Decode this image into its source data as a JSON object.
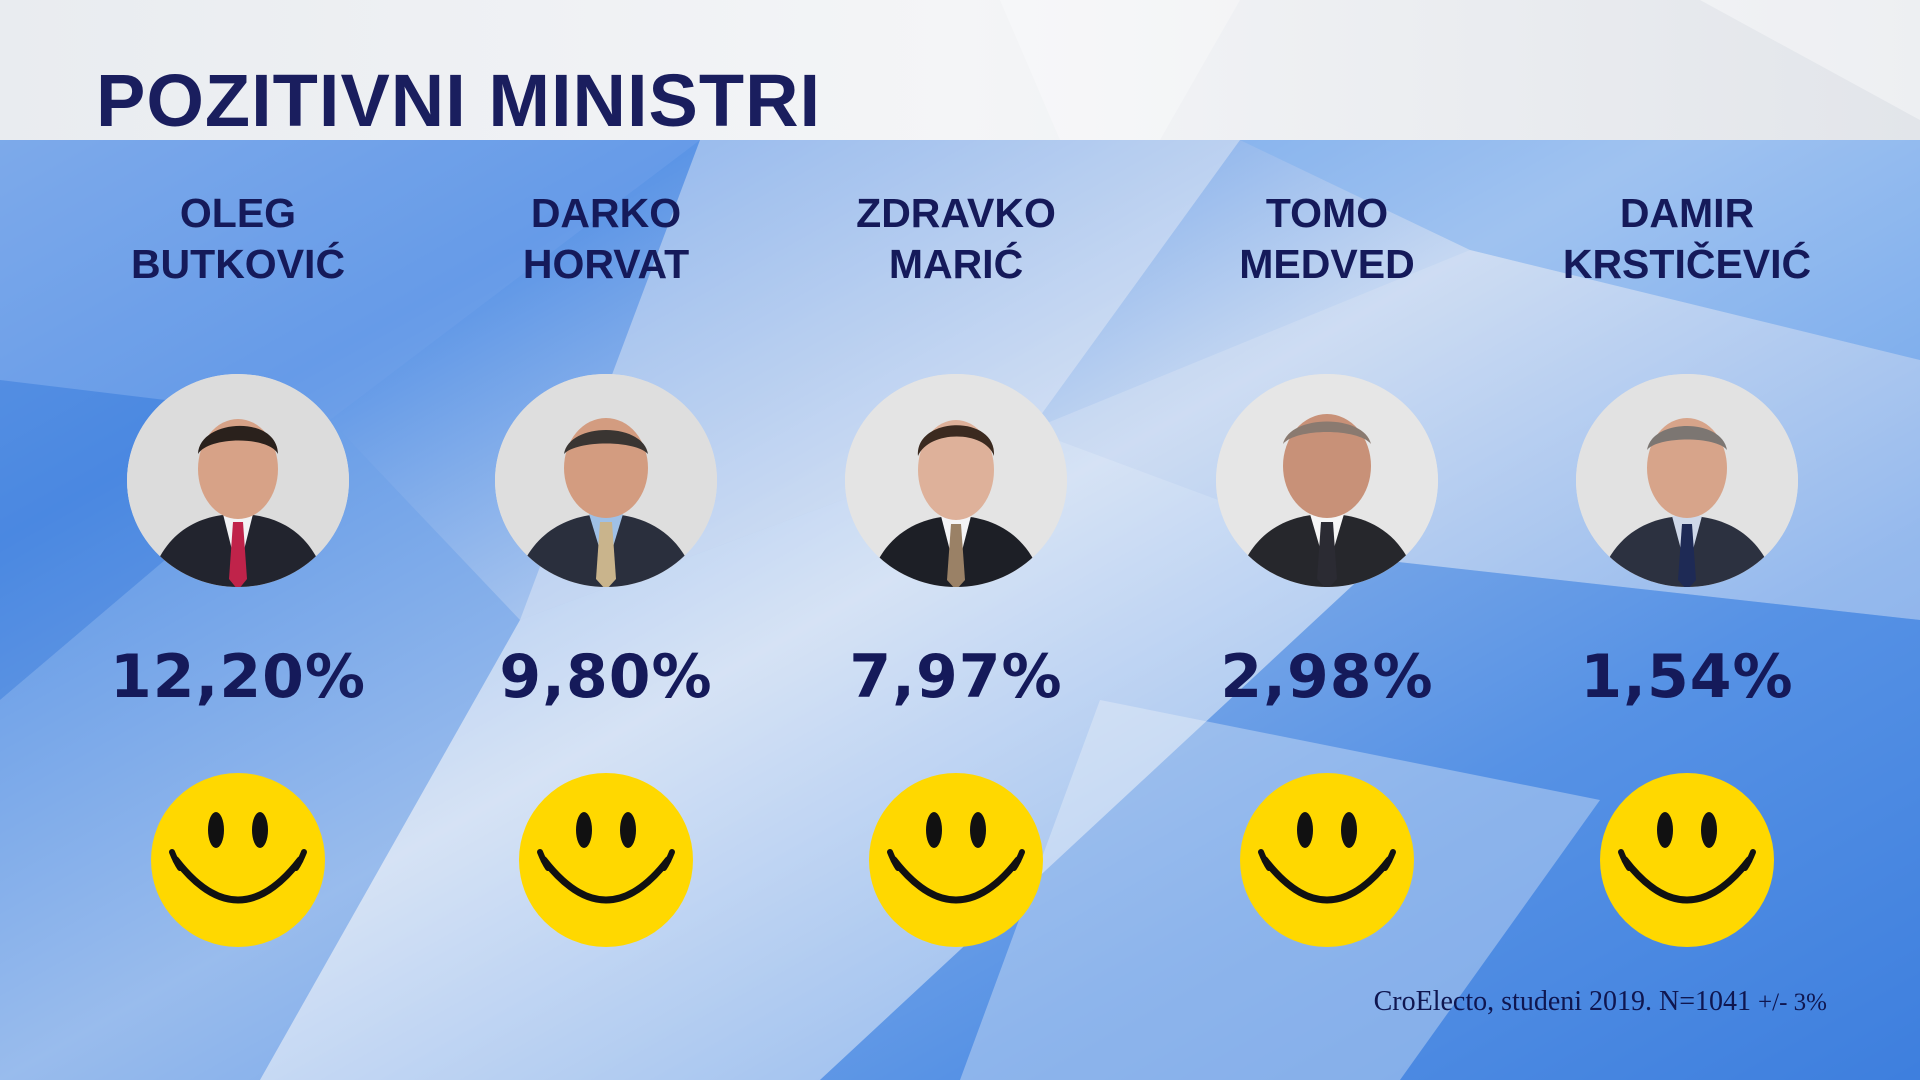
{
  "title": "POZITIVNI MINISTRI",
  "ministers": [
    {
      "first": "OLEG",
      "last": "BUTKOVIĆ",
      "percent": "12,20%",
      "tie_color": "#c0234a"
    },
    {
      "first": "DARKO",
      "last": "HORVAT",
      "percent": "9,80%",
      "tie_color": "#c9b48c"
    },
    {
      "first": "ZDRAVKO",
      "last": "MARIĆ",
      "percent": "7,97%",
      "tie_color": "#9a8166"
    },
    {
      "first": "TOMO",
      "last": "MEDVED",
      "percent": "2,98%",
      "tie_color": "#2b2b33"
    },
    {
      "first": "DAMIR",
      "last": "KRSTIČEVIĆ",
      "percent": "1,54%",
      "tie_color": "#1e2a55"
    }
  ],
  "source": {
    "text": "CroElecto, studeni 2019. N=1041 ",
    "margin": "+/- 3%"
  },
  "colors": {
    "text": "#151a5a",
    "smiley": "#ffd800",
    "bg_blue": "#2e6fd6"
  },
  "icons": {
    "smiley": "smiley-face-icon",
    "portrait": "person-portrait"
  }
}
